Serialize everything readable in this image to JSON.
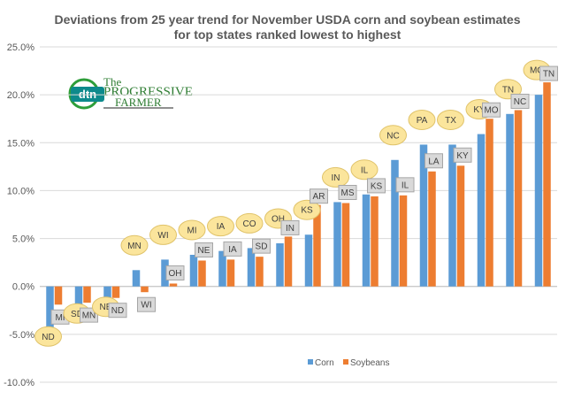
{
  "chart_data": {
    "type": "bar",
    "title": "Deviations from 25 year trend for November USDA corn and soybean estimates",
    "subtitle": "for top states ranked lowest to highest",
    "xlabel": "",
    "ylabel": "",
    "ylim": [
      -10,
      25
    ],
    "yticks": [
      "-10.0%",
      "-5.0%",
      "0.0%",
      "5.0%",
      "10.0%",
      "15.0%",
      "20.0%",
      "25.0%"
    ],
    "grid": true,
    "legend_position": "bottom-right",
    "series": [
      {
        "name": "Corn",
        "color": "#5b9bd5",
        "states": [
          "ND",
          "SD",
          "NE",
          "MN",
          "WI",
          "MI",
          "IA",
          "CO",
          "OH",
          "KS",
          "IN",
          "IL",
          "NC",
          "PA",
          "TX",
          "KY",
          "TN",
          "MO"
        ],
        "values": [
          -4.3,
          -1.9,
          -1.2,
          1.7,
          2.8,
          3.3,
          3.7,
          4.0,
          4.5,
          5.4,
          8.8,
          9.6,
          13.2,
          14.8,
          14.8,
          15.9,
          18.0,
          20.0
        ]
      },
      {
        "name": "Soybeans",
        "color": "#ed7d31",
        "states": [
          "MI",
          "MN",
          "ND",
          "WI",
          "OH",
          "NE",
          "IA",
          "SD",
          "IN",
          "AR",
          "MS",
          "KS",
          "IL",
          "LA",
          "KY",
          "MO",
          "NC",
          "TN"
        ],
        "values": [
          -1.9,
          -1.7,
          -1.2,
          -0.6,
          0.3,
          2.7,
          2.8,
          3.1,
          5.2,
          8.5,
          8.7,
          9.4,
          9.5,
          12.0,
          12.6,
          17.5,
          18.4,
          21.3
        ]
      }
    ]
  },
  "logo": {
    "dtn": "dtn",
    "line1": "PROGRESSIVE",
    "line2": "FARMER",
    "the": "The"
  }
}
